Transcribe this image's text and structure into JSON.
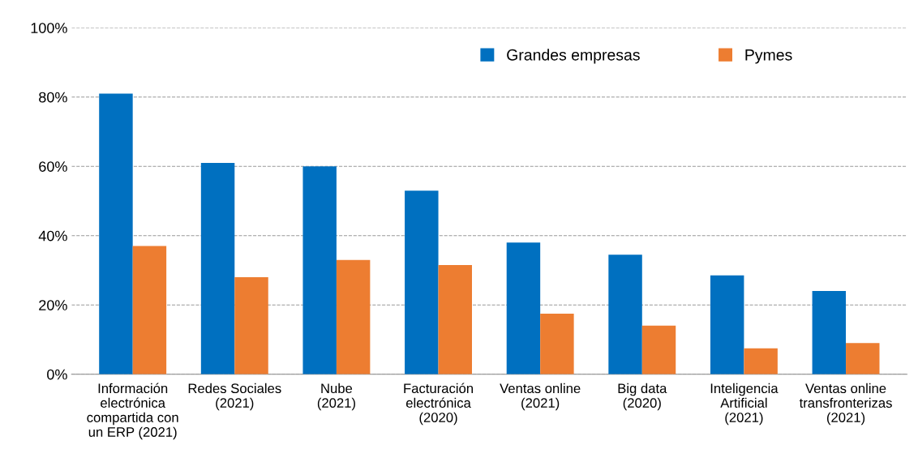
{
  "chart_data": {
    "type": "bar",
    "categories": [
      "Información\nelectrónica\ncompartida con\nun ERP (2021)",
      "Redes Sociales\n(2021)",
      "Nube\n(2021)",
      "Facturación\nelectrónica\n(2020)",
      "Ventas online\n(2021)",
      "Big data\n(2020)",
      "Inteligencia\nArtificial\n(2021)",
      "Ventas online\ntransfronterizas\n(2021)"
    ],
    "series": [
      {
        "name": "Grandes empresas",
        "color": "#0070c0",
        "values": [
          81,
          61,
          60,
          53,
          38,
          34.5,
          28.5,
          24
        ]
      },
      {
        "name": "Pymes",
        "color": "#ed7d31",
        "values": [
          37,
          28,
          33,
          31.5,
          17.5,
          14,
          7.5,
          9
        ]
      }
    ],
    "ylim": [
      0,
      100
    ],
    "yticks": [
      {
        "value": 0,
        "label": "0%"
      },
      {
        "value": 20,
        "label": "20%"
      },
      {
        "value": 40,
        "label": "40%"
      },
      {
        "value": 60,
        "label": "60%"
      },
      {
        "value": 80,
        "label": "80%"
      },
      {
        "value": 100,
        "label": "100%"
      }
    ],
    "grid": "y",
    "legend": "top right"
  }
}
